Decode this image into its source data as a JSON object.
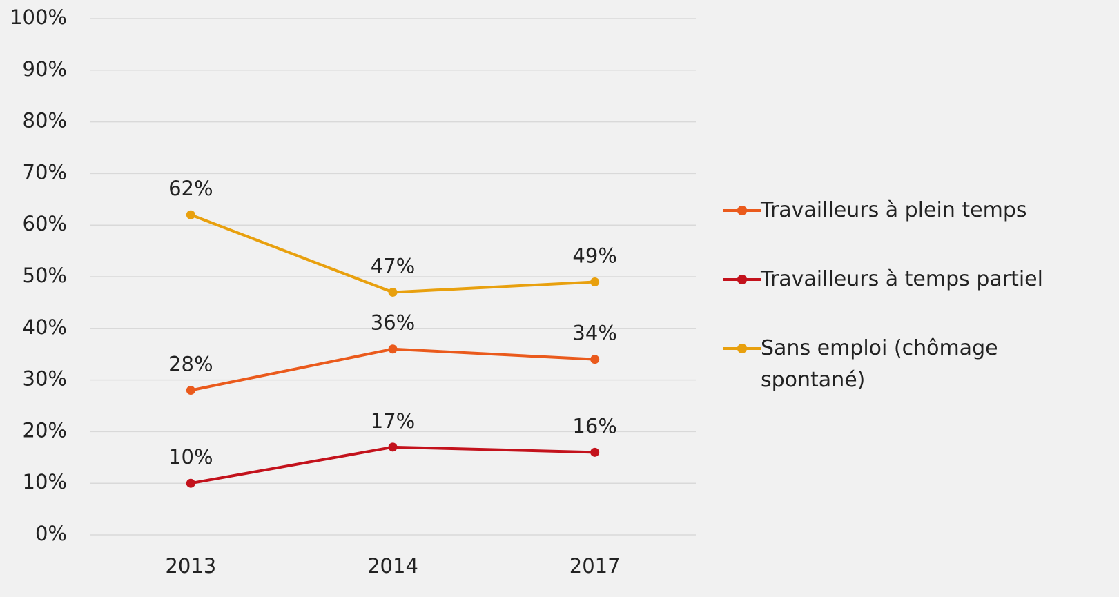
{
  "chart_data": {
    "type": "line",
    "categories": [
      "2013",
      "2014",
      "2017"
    ],
    "series": [
      {
        "name": "Travailleurs à plein temps",
        "color": "#ea5a1c",
        "values": [
          28,
          36,
          34
        ],
        "value_labels": [
          "28%",
          "36%",
          "34%"
        ]
      },
      {
        "name": "Travailleurs à temps partiel",
        "color": "#c3121c",
        "values": [
          10,
          17,
          16
        ],
        "value_labels": [
          "10%",
          "17%",
          "16%"
        ]
      },
      {
        "name": "Sans emploi (chômage spontané)",
        "color": "#e8a00e",
        "values": [
          62,
          47,
          49
        ],
        "value_labels": [
          "62%",
          "47%",
          "49%"
        ]
      }
    ],
    "ylim": [
      0,
      100
    ],
    "yticks": [
      {
        "value": 0,
        "label": "0%"
      },
      {
        "value": 10,
        "label": "10%"
      },
      {
        "value": 20,
        "label": "20%"
      },
      {
        "value": 30,
        "label": "30%"
      },
      {
        "value": 40,
        "label": "40%"
      },
      {
        "value": 50,
        "label": "50%"
      },
      {
        "value": 60,
        "label": "60%"
      },
      {
        "value": 70,
        "label": "70%"
      },
      {
        "value": 80,
        "label": "80%"
      },
      {
        "value": 90,
        "label": "90%"
      },
      {
        "value": 100,
        "label": "100%"
      }
    ],
    "grid": true,
    "legend": "right"
  }
}
